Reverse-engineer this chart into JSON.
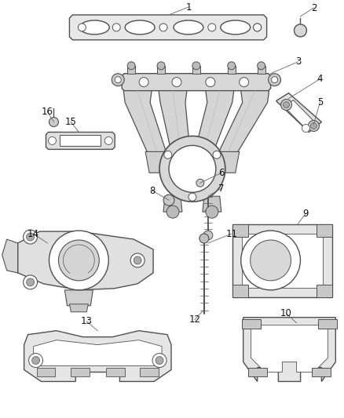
{
  "bg_color": "#ffffff",
  "lc": "#505050",
  "lw": 1.0,
  "fig_w": 4.38,
  "fig_h": 5.33,
  "dpi": 100
}
